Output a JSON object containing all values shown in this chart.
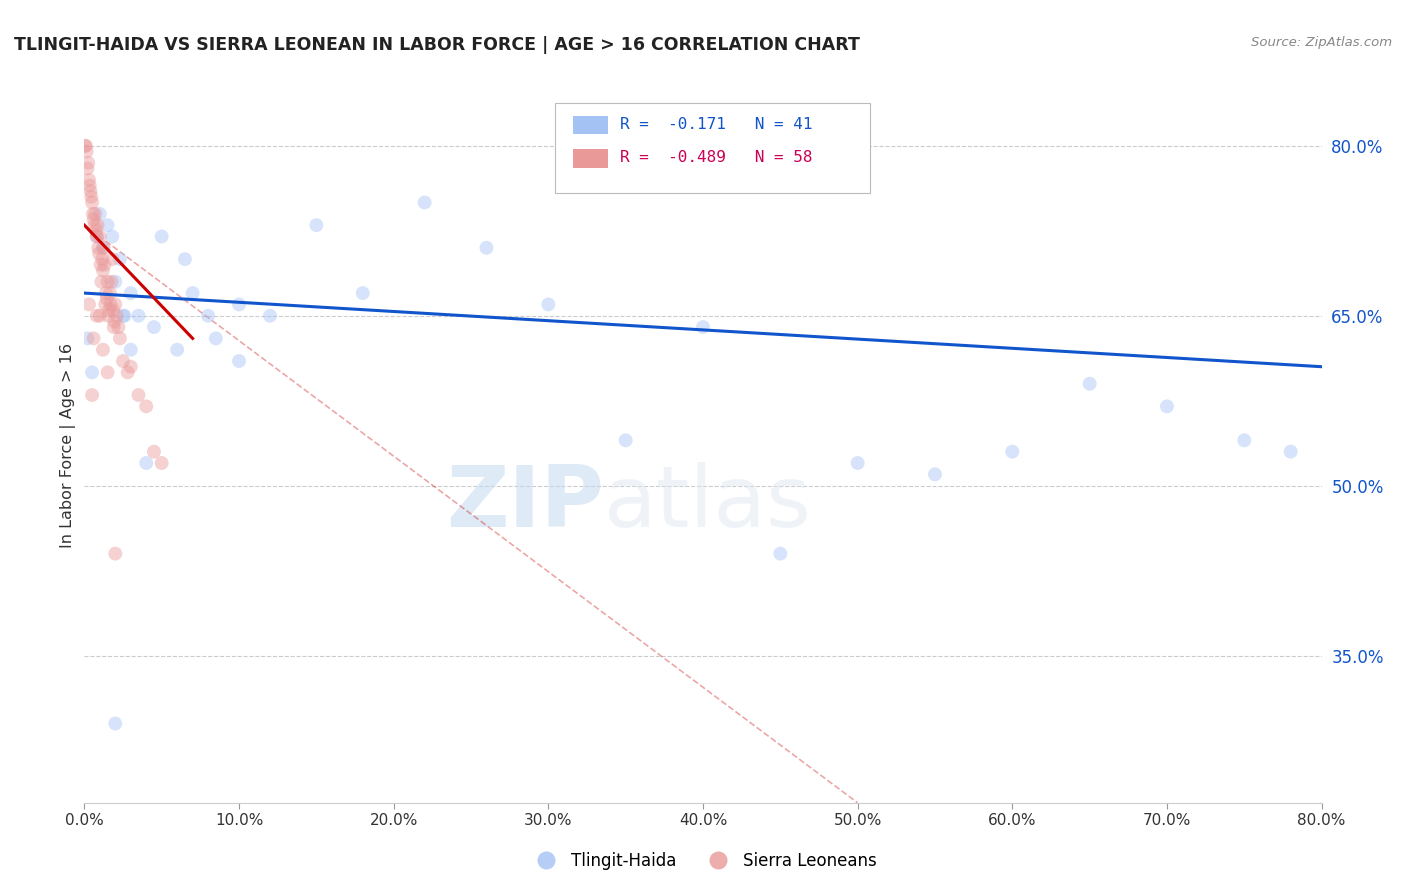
{
  "title": "TLINGIT-HAIDA VS SIERRA LEONEAN IN LABOR FORCE | AGE > 16 CORRELATION CHART",
  "source": "Source: ZipAtlas.com",
  "ylabel": "In Labor Force | Age > 16",
  "legend_label1": "Tlingit-Haida",
  "legend_label2": "Sierra Leoneans",
  "R1": -0.171,
  "N1": 41,
  "R2": -0.489,
  "N2": 58,
  "blue_color": "#a4c2f4",
  "pink_color": "#ea9999",
  "trend_blue": "#1155cc",
  "trend_pink": "#cc0000",
  "watermark_zip": "ZIP",
  "watermark_atlas": "atlas",
  "blue_points_x": [
    0.2,
    0.5,
    0.8,
    1.0,
    1.2,
    1.5,
    1.8,
    2.0,
    2.3,
    2.6,
    3.0,
    3.5,
    4.0,
    5.0,
    6.5,
    8.0,
    10.0,
    12.0,
    15.0,
    18.0,
    22.0,
    26.0,
    30.0,
    35.0,
    40.0,
    45.0,
    50.0,
    55.0,
    60.0,
    65.0,
    70.0,
    75.0,
    78.0,
    2.0,
    2.5,
    3.0,
    4.5,
    6.0,
    7.0,
    8.5,
    10.0
  ],
  "blue_points_y": [
    63.0,
    60.0,
    72.0,
    74.0,
    71.0,
    73.0,
    72.0,
    68.0,
    70.0,
    65.0,
    67.0,
    65.0,
    52.0,
    72.0,
    70.0,
    65.0,
    66.0,
    65.0,
    73.0,
    67.0,
    75.0,
    71.0,
    66.0,
    54.0,
    64.0,
    44.0,
    52.0,
    51.0,
    53.0,
    59.0,
    57.0,
    54.0,
    53.0,
    29.0,
    65.0,
    62.0,
    64.0,
    62.0,
    67.0,
    63.0,
    61.0
  ],
  "pink_points_x": [
    0.05,
    0.1,
    0.15,
    0.2,
    0.25,
    0.3,
    0.35,
    0.4,
    0.45,
    0.5,
    0.55,
    0.6,
    0.65,
    0.7,
    0.75,
    0.8,
    0.85,
    0.9,
    0.95,
    1.0,
    1.05,
    1.1,
    1.15,
    1.2,
    1.25,
    1.3,
    1.35,
    1.4,
    1.45,
    1.5,
    1.55,
    1.6,
    1.65,
    1.7,
    1.75,
    1.8,
    1.85,
    1.9,
    1.95,
    2.0,
    2.1,
    2.2,
    2.3,
    2.5,
    2.8,
    3.0,
    3.5,
    4.0,
    4.5,
    5.0,
    0.3,
    0.5,
    0.6,
    0.8,
    1.0,
    1.2,
    1.5,
    2.0
  ],
  "pink_points_y": [
    80.0,
    80.0,
    79.5,
    78.0,
    78.5,
    77.0,
    76.5,
    76.0,
    75.5,
    75.0,
    74.0,
    73.5,
    73.0,
    74.0,
    72.5,
    72.0,
    73.0,
    71.0,
    70.5,
    72.0,
    69.5,
    68.0,
    70.0,
    69.0,
    71.0,
    69.5,
    66.0,
    67.0,
    66.5,
    68.0,
    65.0,
    65.5,
    67.0,
    66.0,
    68.0,
    70.0,
    65.5,
    64.0,
    64.5,
    66.0,
    65.0,
    64.0,
    63.0,
    61.0,
    60.0,
    60.5,
    58.0,
    57.0,
    53.0,
    52.0,
    66.0,
    58.0,
    63.0,
    65.0,
    65.0,
    62.0,
    60.0,
    44.0
  ],
  "xlim": [
    0.0,
    80.0
  ],
  "ylim": [
    22.0,
    85.0
  ],
  "yticks": [
    35.0,
    50.0,
    65.0,
    80.0
  ],
  "xticks": [
    0.0,
    10.0,
    20.0,
    30.0,
    40.0,
    50.0,
    60.0,
    70.0,
    80.0
  ],
  "blue_trend_x0": 0.0,
  "blue_trend_x1": 80.0,
  "blue_trend_y0": 67.0,
  "blue_trend_y1": 60.5,
  "pink_solid_x0": 0.0,
  "pink_solid_x1": 7.0,
  "pink_solid_y0": 73.0,
  "pink_solid_y1": 63.0,
  "pink_dash_x0": 0.0,
  "pink_dash_x1": 50.0,
  "pink_dash_y0": 73.0,
  "pink_dash_y1": 22.0,
  "marker_size": 100,
  "marker_alpha": 0.45
}
